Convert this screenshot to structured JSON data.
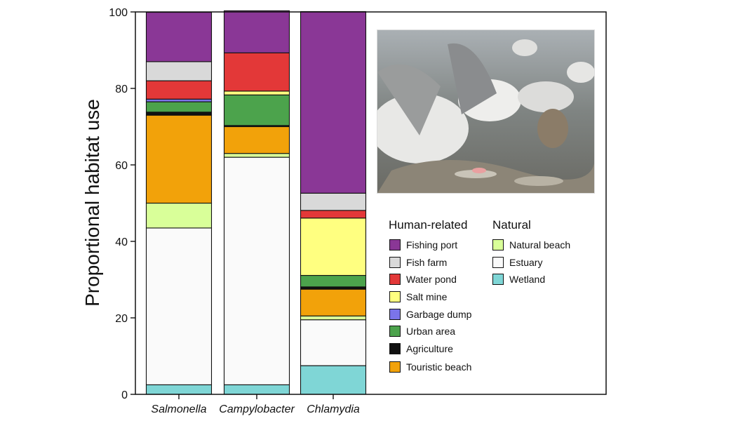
{
  "chart_data": {
    "type": "bar",
    "stacked": true,
    "ylabel": "Proportional habitat use",
    "xlabel": "",
    "ylim": [
      0,
      100
    ],
    "yticks": [
      0,
      20,
      40,
      60,
      80,
      100
    ],
    "categories": [
      "Salmonella",
      "Campylobacter",
      "Chlamydia"
    ],
    "series": [
      {
        "name": "Wetland",
        "group": "Natural",
        "color": "#7fd6d6",
        "values": [
          2.5,
          2.5,
          7.5
        ]
      },
      {
        "name": "Estuary",
        "group": "Natural",
        "color": "#fafafa",
        "values": [
          41,
          59.5,
          12
        ]
      },
      {
        "name": "Natural beach",
        "group": "Natural",
        "color": "#d9ff99",
        "values": [
          6.5,
          1,
          1
        ]
      },
      {
        "name": "Touristic beach",
        "group": "Human-related",
        "color": "#f2a20a",
        "values": [
          23,
          7,
          7
        ]
      },
      {
        "name": "Agriculture",
        "group": "Human-related",
        "color": "#111111",
        "values": [
          0.8,
          0.3,
          0.6
        ]
      },
      {
        "name": "Urban area",
        "group": "Human-related",
        "color": "#4ca34c",
        "values": [
          2.7,
          8,
          3
        ]
      },
      {
        "name": "Garbage dump",
        "group": "Human-related",
        "color": "#7b74ea",
        "values": [
          0.7,
          0,
          0
        ]
      },
      {
        "name": "Salt mine",
        "group": "Human-related",
        "color": "#ffff80",
        "values": [
          0,
          1,
          15
        ]
      },
      {
        "name": "Water pond",
        "group": "Human-related",
        "color": "#e33838",
        "values": [
          4.8,
          10,
          2
        ]
      },
      {
        "name": "Fish farm",
        "group": "Human-related",
        "color": "#d9d9d9",
        "values": [
          5,
          0,
          4.5
        ]
      },
      {
        "name": "Fishing port",
        "group": "Human-related",
        "color": "#8a3796",
        "values": [
          12.9,
          11,
          47.5
        ]
      }
    ]
  },
  "legend": {
    "human_title": "Human-related",
    "natural_title": "Natural",
    "human": [
      {
        "label": "Fishing port",
        "color": "#8a3796"
      },
      {
        "label": "Fish farm",
        "color": "#d9d9d9"
      },
      {
        "label": "Water pond",
        "color": "#e33838"
      },
      {
        "label": "Salt mine",
        "color": "#ffff80"
      },
      {
        "label": "Garbage dump",
        "color": "#7b74ea"
      },
      {
        "label": "Urban area",
        "color": "#4ca34c"
      },
      {
        "label": "Agriculture",
        "color": "#111111"
      },
      {
        "label": "Touristic beach",
        "color": "#f2a20a"
      }
    ],
    "natural": [
      {
        "label": "Natural beach",
        "color": "#d9ff99"
      },
      {
        "label": "Estuary",
        "color": "#fafafa"
      },
      {
        "label": "Wetland",
        "color": "#7fd6d6"
      }
    ]
  },
  "photo": {
    "icon": "gulls-feeding-photo"
  }
}
